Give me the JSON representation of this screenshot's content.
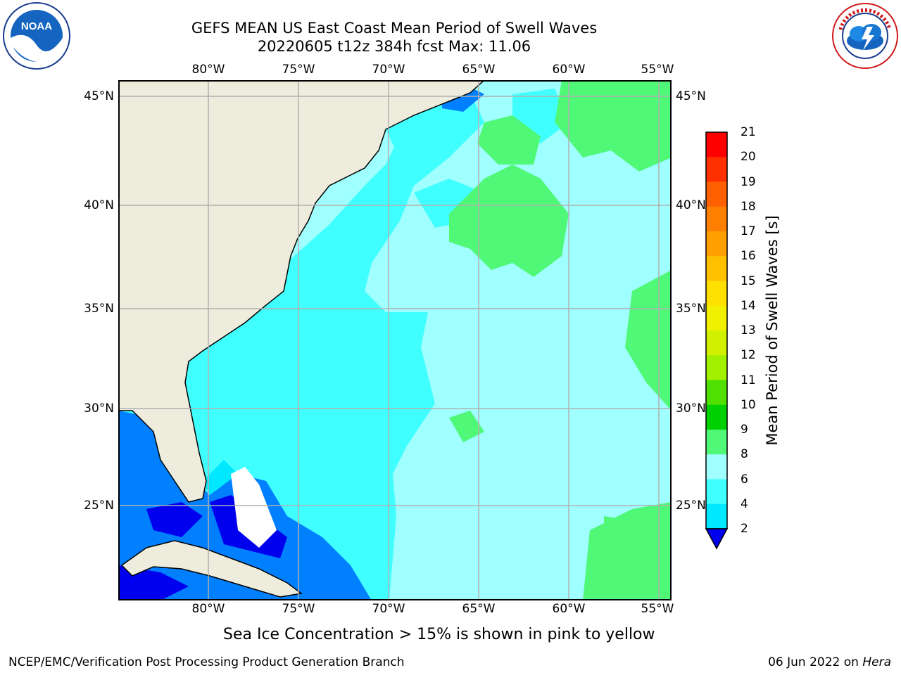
{
  "header": {
    "title_line1": "GEFS MEAN US East Coast Mean Period of Swell Waves",
    "title_line2": "20220605 t12z 384h fcst   Max: 11.06"
  },
  "map": {
    "lon_labels": [
      "80°W",
      "75°W",
      "70°W",
      "65°W",
      "60°W",
      "55°W"
    ],
    "lat_labels": [
      "45°N",
      "40°N",
      "35°N",
      "30°N",
      "25°N"
    ],
    "colors": {
      "land": "#eeeddd",
      "field_2_4": "#0080ff",
      "field_4_6": "#00d8ff",
      "field_6_8": "#40ffff",
      "field_8_9": "#a0ffff",
      "field_9_10": "#50f878",
      "low": "#0000ee",
      "grid": "#b0b0b0"
    }
  },
  "colorbar": {
    "label": "Mean Period of Swell Waves [s]",
    "ticks": [
      "21",
      "20",
      "19",
      "18",
      "17",
      "16",
      "15",
      "14",
      "13",
      "12",
      "11",
      "10",
      "9",
      "8",
      "6",
      "4",
      "2"
    ],
    "colors": [
      "#ff0000",
      "#ff3000",
      "#ff6000",
      "#ff8000",
      "#ffa000",
      "#ffc000",
      "#ffe000",
      "#f0f000",
      "#d0f000",
      "#a0f000",
      "#50e000",
      "#00d000",
      "#50f878",
      "#a0ffff",
      "#40ffff",
      "#00e8ff",
      "#0080ff"
    ],
    "extend_color": "#0000ee"
  },
  "notes": {
    "ice": "Sea Ice Concentration > 15% is shown in pink to yellow"
  },
  "footer": {
    "left": "NCEP/EMC/Verification Post Processing Product Generation Branch",
    "date": "06 Jun 2022 on ",
    "host": "Hera"
  },
  "logos": {
    "noaa": "NOAA",
    "nws": "NATIONAL WEATHER SERVICE"
  }
}
